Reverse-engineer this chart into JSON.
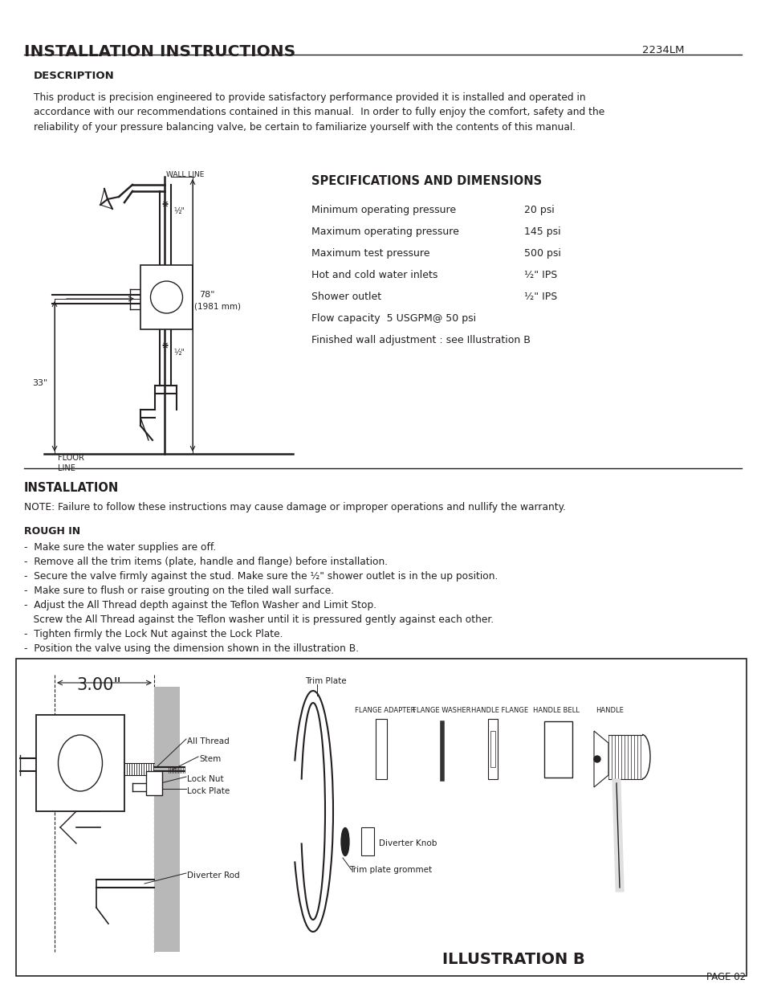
{
  "title": "INSTALLATION INSTRUCTIONS",
  "model": "2234LM _ _",
  "page": "PAGE 02",
  "bg_color": "#ffffff",
  "text_color": "#231f20",
  "description_heading": "DESCRIPTION",
  "description_body": "This product is precision engineered to provide satisfactory performance provided it is installed and operated in\naccordance with our recommendations contained in this manual.  In order to fully enjoy the comfort, safety and the\nreliability of your pressure balancing valve, be certain to familiarize yourself with the contents of this manual.",
  "specs_heading": "SPECIFICATIONS AND DIMENSIONS",
  "specs": [
    [
      "Minimum operating pressure",
      "20 psi"
    ],
    [
      "Maximum operating pressure",
      "145 psi"
    ],
    [
      "Maximum test pressure",
      "500 psi"
    ],
    [
      "Hot and cold water inlets",
      "½\" IPS"
    ],
    [
      "Shower outlet",
      "½\" IPS"
    ],
    [
      "Flow capacity  5 USGPM@ 50 psi",
      ""
    ],
    [
      "Finished wall adjustment : see Illustration B",
      ""
    ]
  ],
  "installation_heading": "INSTALLATION",
  "note_text": "NOTE: Failure to follow these instructions may cause damage or improper operations and nullify the warranty.",
  "rough_in_heading": "ROUGH IN",
  "rough_in_items": [
    "-  Make sure the water supplies are off.",
    "-  Remove all the trim items (plate, handle and flange) before installation.",
    "-  Secure the valve firmly against the stud. Make sure the ½\" shower outlet is in the up position.",
    "-  Make sure to flush or raise grouting on the tiled wall surface.",
    "-  Adjust the All Thread depth against the Teflon Washer and Limit Stop.",
    "   Screw the All Thread against the Teflon washer until it is pressured gently against each other.",
    "-  Tighten firmly the Lock Nut against the Lock Plate.",
    "-  Position the valve using the dimension shown in the illustration B."
  ],
  "illus_b_label": "ILLUSTRATION B"
}
